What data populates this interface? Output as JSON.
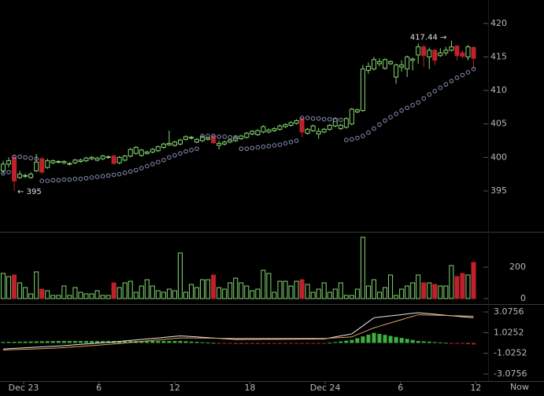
{
  "chart_data": [
    {
      "type": "candlestick",
      "x": [
        0,
        1,
        2,
        3,
        4,
        5,
        6,
        7,
        8,
        9,
        10,
        11,
        12,
        13,
        14,
        15,
        16,
        17,
        18,
        19,
        20,
        21,
        22,
        23,
        24,
        25,
        26,
        27,
        28,
        29,
        30,
        31,
        32,
        33,
        34,
        35,
        36,
        37,
        38,
        39,
        40,
        41,
        42,
        43,
        44,
        45,
        46,
        47,
        48,
        49,
        50,
        51,
        52,
        53,
        54,
        55,
        56,
        57,
        58,
        59,
        60,
        61,
        62,
        63,
        64,
        65,
        66,
        67,
        68,
        69,
        70,
        71,
        72,
        73,
        74,
        75,
        76,
        77,
        78,
        79,
        80,
        81,
        82,
        83,
        84,
        85
      ],
      "open": [
        398,
        399,
        400,
        397,
        397.2,
        397,
        398,
        399.8,
        398.5,
        399.2,
        399.3,
        399.2,
        399,
        399.2,
        399.4,
        399.5,
        399.8,
        399.6,
        399.8,
        400,
        400.2,
        399.2,
        399.6,
        400.2,
        400.6,
        400.3,
        400.6,
        400.8,
        401,
        401.5,
        401.9,
        401.8,
        402,
        402.7,
        402.9,
        402.3,
        402.5,
        402.7,
        403.2,
        401.8,
        402,
        402.3,
        402.5,
        402.8,
        403,
        403.5,
        403.4,
        403.8,
        403.8,
        404,
        404.2,
        404.6,
        404.8,
        405.1,
        405.8,
        403.6,
        404,
        403.5,
        403.8,
        404.2,
        404.7,
        404.3,
        404.5,
        405,
        406.8,
        407,
        413,
        413.2,
        414,
        413.3,
        414,
        412,
        413.5,
        413.2,
        414.5,
        415.3,
        416.5,
        415,
        416,
        415.2,
        415.6,
        416,
        416.6,
        415.6,
        415,
        416.4
      ],
      "high": [
        399.5,
        400,
        400.3,
        398,
        397.6,
        397.8,
        400.5,
        400,
        399.8,
        399.7,
        399.6,
        399.6,
        399.3,
        399.8,
        399.8,
        400.1,
        400.2,
        400.1,
        400.4,
        400.3,
        400.4,
        400.2,
        400.4,
        401.4,
        401.7,
        401.3,
        401,
        401.4,
        401.8,
        402.2,
        404,
        402.5,
        402.8,
        403.3,
        403.2,
        402.9,
        403.3,
        403.1,
        403.4,
        402.5,
        402.5,
        402.8,
        403.2,
        403.4,
        403.8,
        404.1,
        404.2,
        404.8,
        404.3,
        404.5,
        404.9,
        405.1,
        405.4,
        405.7,
        406,
        404.4,
        404.9,
        404.4,
        404.4,
        405,
        406,
        405,
        406,
        407.4,
        407.3,
        413.8,
        414.2,
        415,
        414.8,
        414.8,
        414.5,
        414,
        414.5,
        415.2,
        414.9,
        417,
        416.8,
        416.4,
        416.2,
        416.3,
        416.5,
        417.44,
        416.8,
        416,
        416.8,
        416.6
      ],
      "low": [
        397.5,
        398.5,
        395,
        396.8,
        396.9,
        396.8,
        397.8,
        397.5,
        398.3,
        399,
        399.1,
        399,
        398.8,
        399,
        399.2,
        399.3,
        399.6,
        399.4,
        399.6,
        399.8,
        398.9,
        399,
        399.4,
        400,
        400.4,
        400.1,
        400.4,
        400.6,
        400.8,
        401.3,
        401.7,
        401.6,
        401.8,
        402.5,
        402.7,
        402.1,
        402.3,
        402.5,
        402,
        401.2,
        401.8,
        402.1,
        402.3,
        402.6,
        402.8,
        403.3,
        403.2,
        403.6,
        403.6,
        403.8,
        404,
        404.4,
        404.6,
        404.9,
        403,
        403.4,
        403.8,
        402.8,
        403.6,
        404,
        404.5,
        404.1,
        404.3,
        404.8,
        406.6,
        406.8,
        412.5,
        413,
        413.6,
        413.1,
        413.8,
        411,
        412.8,
        412,
        413,
        414,
        413.5,
        413.2,
        413.8,
        415,
        415.2,
        415.8,
        414.5,
        414.8,
        414.5,
        413.2
      ],
      "close": [
        399,
        399.5,
        396.5,
        397.5,
        397.3,
        397.5,
        399.3,
        397.8,
        399.5,
        399.5,
        399.4,
        399.4,
        399.1,
        399.6,
        399.6,
        399.9,
        400,
        399.9,
        400.2,
        400.1,
        399.1,
        400,
        400.2,
        401.2,
        401.5,
        401.1,
        400.8,
        401.2,
        401.6,
        402,
        402.1,
        402.3,
        402.6,
        403.1,
        403,
        402.7,
        403.1,
        402.9,
        402.2,
        402.1,
        402.3,
        402.6,
        403,
        403.2,
        403.6,
        403.9,
        404,
        404.6,
        404.1,
        404.3,
        404.7,
        404.9,
        405.2,
        405.5,
        403.8,
        404.2,
        404.7,
        403.9,
        404.2,
        404.8,
        405.8,
        404.8,
        405.8,
        407.2,
        407.1,
        413.2,
        413.6,
        414.6,
        414.3,
        414.6,
        414.3,
        413.8,
        413.8,
        415,
        414.7,
        416.5,
        415.2,
        416,
        414.5,
        415.6,
        416,
        416.5,
        415.2,
        415.1,
        416.5,
        414.8
      ],
      "sar": [
        397.6,
        397.8,
        400.1,
        400.1,
        400,
        399.9,
        399.8,
        396.5,
        396.5,
        396.6,
        396.6,
        396.7,
        396.7,
        396.8,
        396.8,
        396.9,
        397,
        397.1,
        397.2,
        397.3,
        397.4,
        397.5,
        397.7,
        397.9,
        398.1,
        398.4,
        398.7,
        399,
        399.3,
        399.6,
        400,
        400.3,
        400.6,
        400.9,
        401.1,
        401.3,
        403.2,
        403.2,
        403.2,
        403.1,
        403.1,
        403,
        403,
        401.3,
        401.3,
        401.4,
        401.5,
        401.6,
        401.7,
        401.8,
        401.9,
        402.1,
        402.3,
        402.5,
        405.9,
        405.9,
        405.8,
        405.8,
        405.7,
        405.7,
        405.6,
        405.6,
        402.6,
        402.7,
        402.9,
        403.2,
        403.7,
        404.3,
        404.9,
        405.5,
        406,
        406.5,
        407,
        407.4,
        407.8,
        408.2,
        408.8,
        409.4,
        409.9,
        410.4,
        410.9,
        411.4,
        411.9,
        412.3,
        412.7,
        413.2
      ],
      "up_color": "#84d66f",
      "down_color": "#c0202c",
      "sar_color": "#8790b8",
      "ylim": [
        388.9,
        423.5
      ],
      "yticks": [
        395,
        400,
        405,
        410,
        415,
        420
      ],
      "xlim": [
        -0.57,
        87.63
      ],
      "xticks": [
        {
          "value": 3.7,
          "label": "Dec 23"
        },
        {
          "value": 17.3,
          "label": "6"
        },
        {
          "value": 31,
          "label": "12"
        },
        {
          "value": 44.6,
          "label": "18"
        },
        {
          "value": 58.2,
          "label": "Dec 24"
        },
        {
          "value": 71.8,
          "label": "6"
        },
        {
          "value": 85.4,
          "label": "12"
        }
      ],
      "x_end_label": "Now",
      "annotations": [
        {
          "text": "417.44 →"
        },
        {
          "text": "← 395"
        }
      ]
    },
    {
      "type": "bar",
      "values": [
        160,
        140,
        150,
        100,
        70,
        30,
        170,
        60,
        50,
        20,
        20,
        80,
        20,
        70,
        40,
        30,
        30,
        50,
        20,
        20,
        100,
        70,
        100,
        110,
        40,
        80,
        120,
        80,
        50,
        40,
        60,
        50,
        290,
        40,
        90,
        70,
        120,
        120,
        150,
        70,
        60,
        100,
        130,
        100,
        80,
        50,
        60,
        180,
        160,
        40,
        110,
        110,
        80,
        110,
        120,
        90,
        40,
        60,
        100,
        40,
        60,
        100,
        20,
        20,
        60,
        390,
        80,
        120,
        40,
        70,
        150,
        20,
        60,
        80,
        100,
        150,
        100,
        100,
        90,
        80,
        80,
        210,
        140,
        160,
        150,
        230
      ],
      "up_color": "#84d66f",
      "down_color": "#c0202c",
      "ylim": [
        -30,
        420
      ],
      "yticks": [
        0,
        200
      ]
    },
    {
      "type": "macd",
      "series": [
        {
          "color": "#e8e8e8",
          "values": [
            -0.6,
            -0.57,
            -0.54,
            -0.51,
            -0.48,
            -0.45,
            -0.42,
            -0.39,
            -0.36,
            -0.33,
            -0.3,
            -0.26,
            -0.22,
            -0.18,
            -0.14,
            -0.1,
            -0.06,
            -0.02,
            0.02,
            0.06,
            0.1,
            0.15,
            0.2,
            0.25,
            0.3,
            0.35,
            0.4,
            0.45,
            0.5,
            0.55,
            0.6,
            0.65,
            0.7,
            0.67,
            0.63,
            0.6,
            0.56,
            0.53,
            0.49,
            0.46,
            0.42,
            0.39,
            0.35,
            0.35,
            0.36,
            0.36,
            0.36,
            0.37,
            0.37,
            0.37,
            0.37,
            0.38,
            0.38,
            0.38,
            0.39,
            0.39,
            0.39,
            0.4,
            0.4,
            0.5,
            0.6,
            0.7,
            0.8,
            0.9,
            1.3,
            1.7,
            2.1,
            2.5,
            2.56,
            2.63,
            2.69,
            2.75,
            2.81,
            2.88,
            2.94,
            3.0,
            2.95,
            2.9,
            2.85,
            2.8,
            2.75,
            2.7,
            2.65,
            2.6,
            2.55,
            2.5
          ]
        },
        {
          "color": "#e0a060",
          "values": [
            -0.7,
            -0.68,
            -0.66,
            -0.64,
            -0.62,
            -0.6,
            -0.58,
            -0.56,
            -0.54,
            -0.52,
            -0.5,
            -0.46,
            -0.42,
            -0.38,
            -0.34,
            -0.3,
            -0.26,
            -0.22,
            -0.18,
            -0.14,
            -0.1,
            -0.05,
            0,
            0.05,
            0.1,
            0.15,
            0.2,
            0.25,
            0.3,
            0.35,
            0.4,
            0.45,
            0.5,
            0.5,
            0.5,
            0.49,
            0.49,
            0.48,
            0.48,
            0.47,
            0.46,
            0.46,
            0.45,
            0.45,
            0.45,
            0.45,
            0.45,
            0.45,
            0.45,
            0.45,
            0.45,
            0.45,
            0.45,
            0.45,
            0.45,
            0.45,
            0.45,
            0.45,
            0.45,
            0.48,
            0.51,
            0.54,
            0.57,
            0.6,
            0.83,
            1.05,
            1.28,
            1.5,
            1.66,
            1.83,
            1.99,
            2.15,
            2.31,
            2.48,
            2.64,
            2.8,
            2.79,
            2.77,
            2.76,
            2.74,
            2.73,
            2.71,
            2.7,
            2.68,
            2.67,
            2.65
          ]
        }
      ],
      "histogram": [
        0.1,
        0.11,
        0.12,
        0.13,
        0.14,
        0.15,
        0.16,
        0.17,
        0.18,
        0.19,
        0.2,
        0.2,
        0.2,
        0.2,
        0.2,
        0.2,
        0.2,
        0.2,
        0.2,
        0.2,
        0.2,
        0.2,
        0.2,
        0.2,
        0.2,
        0.2,
        0.2,
        0.2,
        0.2,
        0.2,
        0.2,
        0.2,
        0.2,
        0.17,
        0.13,
        0.11,
        0.07,
        0.05,
        0.01,
        -0.01,
        -0.04,
        -0.07,
        -0.1,
        -0.1,
        -0.09,
        -0.09,
        -0.09,
        -0.08,
        -0.08,
        -0.08,
        -0.08,
        -0.07,
        -0.07,
        -0.07,
        -0.06,
        -0.06,
        -0.06,
        -0.05,
        -0.05,
        0.02,
        0.09,
        0.16,
        0.23,
        0.3,
        0.47,
        0.65,
        0.82,
        1.0,
        0.9,
        0.8,
        0.7,
        0.6,
        0.5,
        0.4,
        0.3,
        0.2,
        0.16,
        0.13,
        0.09,
        0.06,
        0.02,
        -0.01,
        -0.05,
        -0.08,
        -0.12,
        -0.15
      ],
      "hist_up_color": "#3fae3f",
      "hist_down_color": "#b8262e",
      "ylim": [
        -3.78,
        3.78
      ],
      "yticks": [
        -3.0756,
        -1.0252,
        1.0252,
        3.0756
      ]
    }
  ]
}
